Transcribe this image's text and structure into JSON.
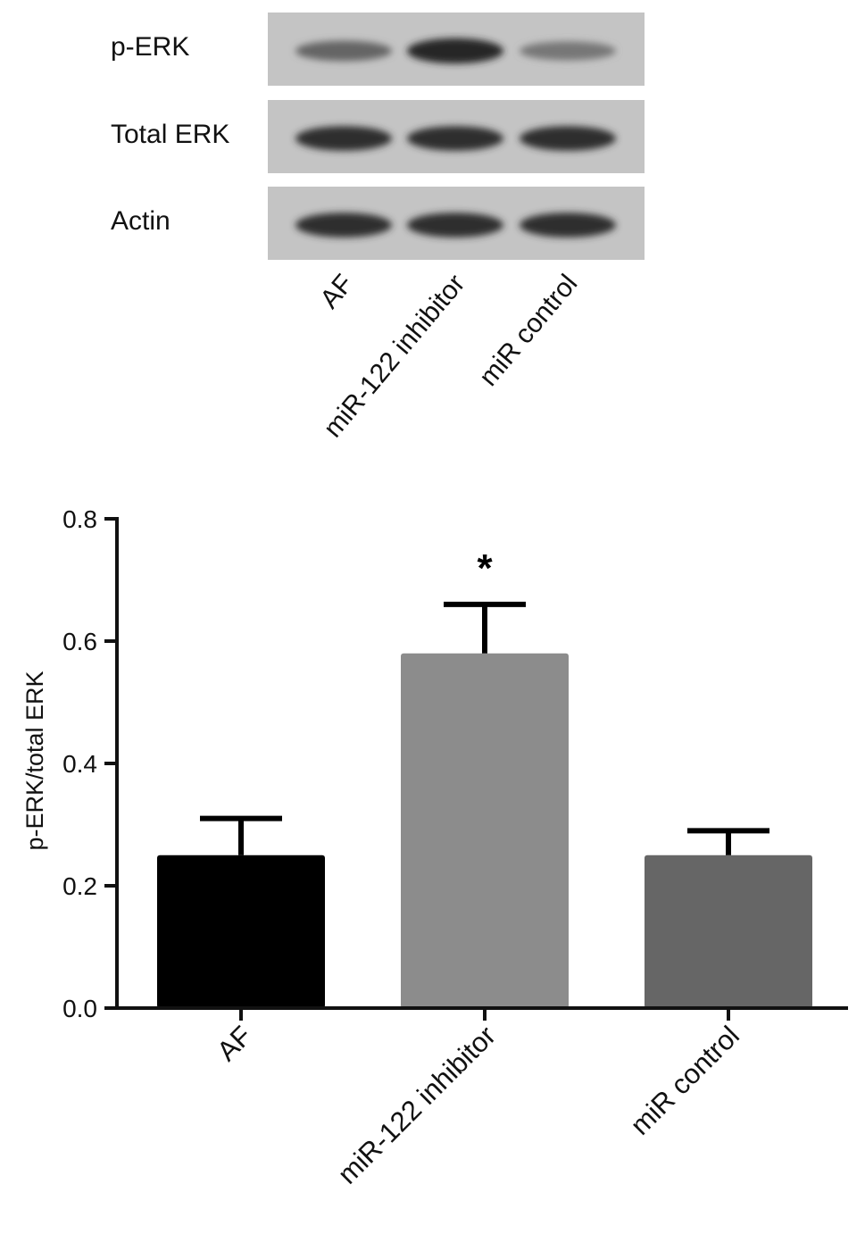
{
  "blot": {
    "rows": [
      {
        "label": "p-ERK",
        "intensities": [
          0.55,
          0.9,
          0.45
        ]
      },
      {
        "label": "Total ERK",
        "intensities": [
          0.85,
          0.85,
          0.85
        ]
      },
      {
        "label": "Actin",
        "intensities": [
          0.85,
          0.85,
          0.85
        ]
      }
    ],
    "lanes": [
      "AF",
      "miR-122 inhibitor",
      "miR control"
    ]
  },
  "chart_data": {
    "type": "bar",
    "categories": [
      "AF",
      "miR-122 inhibitor",
      "miR control"
    ],
    "values": [
      0.25,
      0.58,
      0.25
    ],
    "errors": [
      0.06,
      0.08,
      0.04
    ],
    "colors": [
      "#000000",
      "#8c8c8c",
      "#666666"
    ],
    "annotations": [
      {
        "category": "miR-122 inhibitor",
        "text": "*"
      }
    ],
    "ylabel": "p-ERK/total ERK",
    "ylim": [
      0,
      0.8
    ],
    "yticks": [
      "0.0",
      "0.2",
      "0.4",
      "0.6",
      "0.8"
    ],
    "grid": false
  }
}
